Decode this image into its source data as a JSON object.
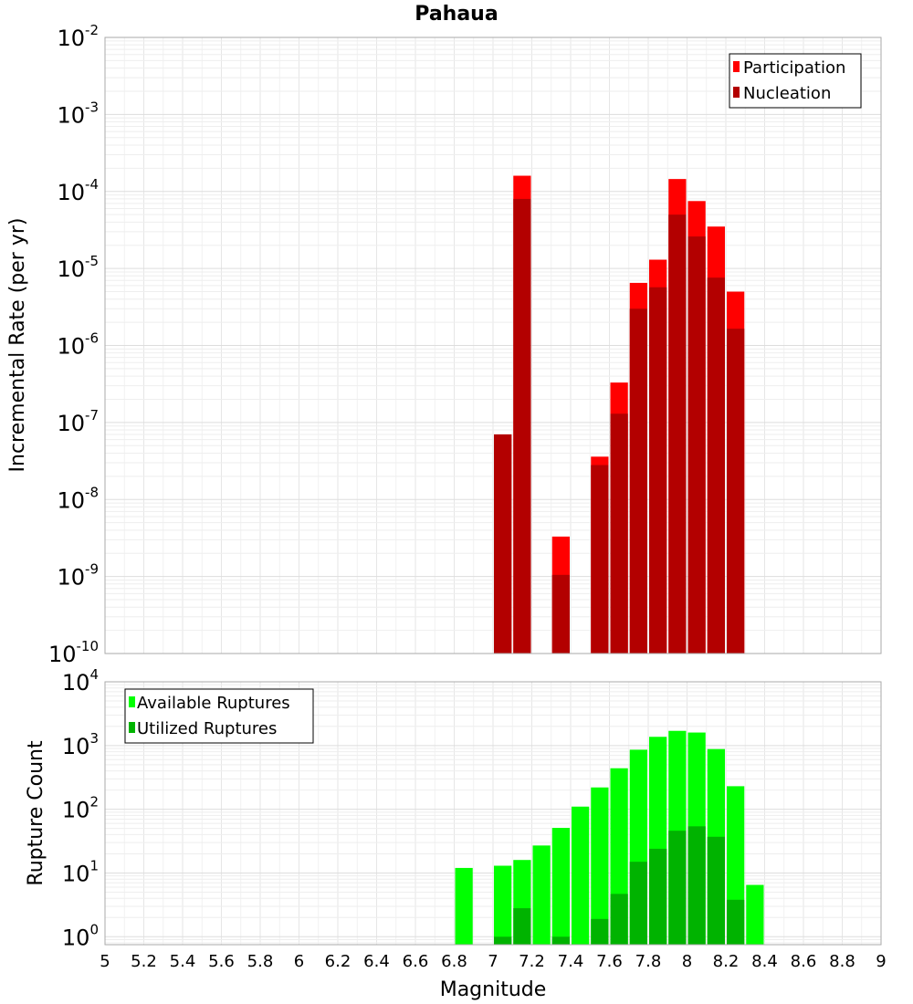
{
  "chart_data": [
    {
      "type": "bar",
      "title": "Pahaua",
      "xlabel": "",
      "ylabel": "Incremental Rate (per yr)",
      "xlim": [
        5,
        9
      ],
      "ylim": [
        1e-10,
        0.01
      ],
      "yscale": "log",
      "bar_width": 0.1,
      "grid": true,
      "legend_position": "top-right",
      "yticks": [
        {
          "base": "10",
          "exp": "-10",
          "value": 1e-10
        },
        {
          "base": "10",
          "exp": "-9",
          "value": 1e-09
        },
        {
          "base": "10",
          "exp": "-8",
          "value": 1e-08
        },
        {
          "base": "10",
          "exp": "-7",
          "value": 1e-07
        },
        {
          "base": "10",
          "exp": "-6",
          "value": 1e-06
        },
        {
          "base": "10",
          "exp": "-5",
          "value": 1e-05
        },
        {
          "base": "10",
          "exp": "-4",
          "value": 0.0001
        },
        {
          "base": "10",
          "exp": "-3",
          "value": 0.001
        },
        {
          "base": "10",
          "exp": "-2",
          "value": 0.01
        }
      ],
      "series": [
        {
          "name": "Participation",
          "color": "#ff0000",
          "x": [
            7.05,
            7.15,
            7.35,
            7.55,
            7.65,
            7.75,
            7.85,
            7.95,
            8.05,
            8.15,
            8.25
          ],
          "values": [
            7e-08,
            0.00016,
            3.3e-09,
            3.6e-08,
            3.3e-07,
            6.5e-06,
            1.3e-05,
            0.000145,
            7.5e-05,
            3.5e-05,
            5e-06
          ]
        },
        {
          "name": "Nucleation",
          "color": "#b30000",
          "x": [
            7.05,
            7.15,
            7.35,
            7.55,
            7.65,
            7.75,
            7.85,
            7.95,
            8.05,
            8.15,
            8.25
          ],
          "values": [
            7e-08,
            8e-05,
            1.05e-09,
            2.8e-08,
            1.3e-07,
            3e-06,
            5.7e-06,
            5e-05,
            2.6e-05,
            7.6e-06,
            1.65e-06
          ]
        }
      ]
    },
    {
      "type": "bar",
      "title": "",
      "xlabel": "Magnitude",
      "ylabel": "Rupture Count",
      "xlim": [
        5,
        9
      ],
      "ylim": [
        0.75,
        10000
      ],
      "yscale": "log",
      "bar_width": 0.1,
      "grid": true,
      "legend_position": "top-left",
      "xticks": [
        "5",
        "5.2",
        "5.4",
        "5.6",
        "5.8",
        "6",
        "6.2",
        "6.4",
        "6.6",
        "6.8",
        "7",
        "7.2",
        "7.4",
        "7.6",
        "7.8",
        "8",
        "8.2",
        "8.4",
        "8.6",
        "8.8",
        "9"
      ],
      "yticks": [
        {
          "base": "10",
          "exp": "0",
          "value": 1
        },
        {
          "base": "10",
          "exp": "1",
          "value": 10
        },
        {
          "base": "10",
          "exp": "2",
          "value": 100
        },
        {
          "base": "10",
          "exp": "3",
          "value": 1000
        },
        {
          "base": "10",
          "exp": "4",
          "value": 10000
        }
      ],
      "series": [
        {
          "name": "Available Ruptures",
          "color": "#00ff00",
          "x": [
            6.85,
            7.05,
            7.15,
            7.25,
            7.35,
            7.45,
            7.55,
            7.65,
            7.75,
            7.85,
            7.95,
            8.05,
            8.15,
            8.25,
            8.35
          ],
          "values": [
            12,
            13,
            16,
            27,
            51,
            110,
            220,
            440,
            860,
            1370,
            1700,
            1600,
            880,
            230,
            6.5
          ]
        },
        {
          "name": "Utilized Ruptures",
          "color": "#00b300",
          "x": [
            7.05,
            7.15,
            7.35,
            7.55,
            7.65,
            7.75,
            7.85,
            7.95,
            8.05,
            8.15,
            8.25
          ],
          "values": [
            1,
            2.8,
            1,
            1.9,
            4.7,
            15,
            24,
            46,
            54,
            37,
            3.8
          ]
        }
      ]
    }
  ]
}
